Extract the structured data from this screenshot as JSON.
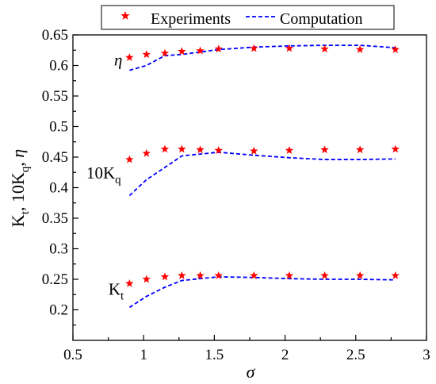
{
  "chart_data": {
    "type": "line",
    "xlabel": "σ",
    "ylabel": {
      "base": "K",
      "sub1": "t",
      "mid": ", 10K",
      "sub2": "q",
      "tail": ", η"
    },
    "xlim": [
      0.5,
      3
    ],
    "ylim": [
      0.15,
      0.65
    ],
    "xticks": [
      0.5,
      1,
      1.5,
      2,
      2.5,
      3
    ],
    "xtick_labels": [
      "0.5",
      "1",
      "1.5",
      "2",
      "2.5",
      "3"
    ],
    "yticks": [
      0.2,
      0.25,
      0.3,
      0.35,
      0.4,
      0.45,
      0.5,
      0.55,
      0.6,
      0.65
    ],
    "ytick_labels": [
      "0.2",
      "0.25",
      "0.3",
      "0.35",
      "0.4",
      "0.45",
      "0.5",
      "0.55",
      "0.6",
      "0.65"
    ],
    "grid": false,
    "legend": {
      "placement": "top-center",
      "entries": [
        {
          "label": "Experiments",
          "marker": "star",
          "color": "#ff0000"
        },
        {
          "label": "Computation",
          "line": "dashed",
          "color": "#0000ff"
        }
      ]
    },
    "annotations": [
      {
        "text": "η",
        "x": 0.85,
        "y": 0.6
      },
      {
        "text": "10K",
        "sub": "q",
        "x": 0.84,
        "y": 0.415
      },
      {
        "text": "K",
        "sub": "t",
        "x": 0.86,
        "y": 0.225
      }
    ],
    "series": [
      {
        "group": "η",
        "kind": "experiments",
        "x": [
          0.9,
          1.02,
          1.15,
          1.27,
          1.4,
          1.53,
          1.78,
          2.03,
          2.28,
          2.53,
          2.78
        ],
        "y": [
          0.613,
          0.618,
          0.62,
          0.623,
          0.624,
          0.627,
          0.628,
          0.628,
          0.627,
          0.626,
          0.626
        ]
      },
      {
        "group": "η",
        "kind": "computation",
        "x": [
          0.9,
          1.02,
          1.15,
          1.27,
          1.4,
          1.53,
          1.78,
          2.03,
          2.28,
          2.53,
          2.78
        ],
        "y": [
          0.592,
          0.6,
          0.616,
          0.618,
          0.622,
          0.626,
          0.63,
          0.632,
          0.633,
          0.633,
          0.629
        ]
      },
      {
        "group": "10Kq",
        "kind": "experiments",
        "x": [
          0.9,
          1.02,
          1.15,
          1.27,
          1.4,
          1.53,
          1.78,
          2.03,
          2.28,
          2.53,
          2.78
        ],
        "y": [
          0.446,
          0.456,
          0.463,
          0.463,
          0.462,
          0.461,
          0.46,
          0.461,
          0.462,
          0.462,
          0.463
        ]
      },
      {
        "group": "10Kq",
        "kind": "computation",
        "x": [
          0.9,
          1.02,
          1.15,
          1.27,
          1.4,
          1.53,
          1.78,
          2.03,
          2.28,
          2.53,
          2.78
        ],
        "y": [
          0.387,
          0.413,
          0.433,
          0.452,
          0.455,
          0.458,
          0.453,
          0.449,
          0.446,
          0.446,
          0.447
        ]
      },
      {
        "group": "Kt",
        "kind": "experiments",
        "x": [
          0.9,
          1.02,
          1.15,
          1.27,
          1.4,
          1.53,
          1.78,
          2.03,
          2.28,
          2.53,
          2.78
        ],
        "y": [
          0.243,
          0.25,
          0.254,
          0.256,
          0.256,
          0.256,
          0.256,
          0.256,
          0.256,
          0.256,
          0.256
        ]
      },
      {
        "group": "Kt",
        "kind": "computation",
        "x": [
          0.9,
          1.02,
          1.15,
          1.27,
          1.4,
          1.53,
          1.78,
          2.03,
          2.28,
          2.53,
          2.78
        ],
        "y": [
          0.204,
          0.222,
          0.237,
          0.248,
          0.251,
          0.254,
          0.253,
          0.251,
          0.25,
          0.25,
          0.249
        ]
      }
    ]
  }
}
